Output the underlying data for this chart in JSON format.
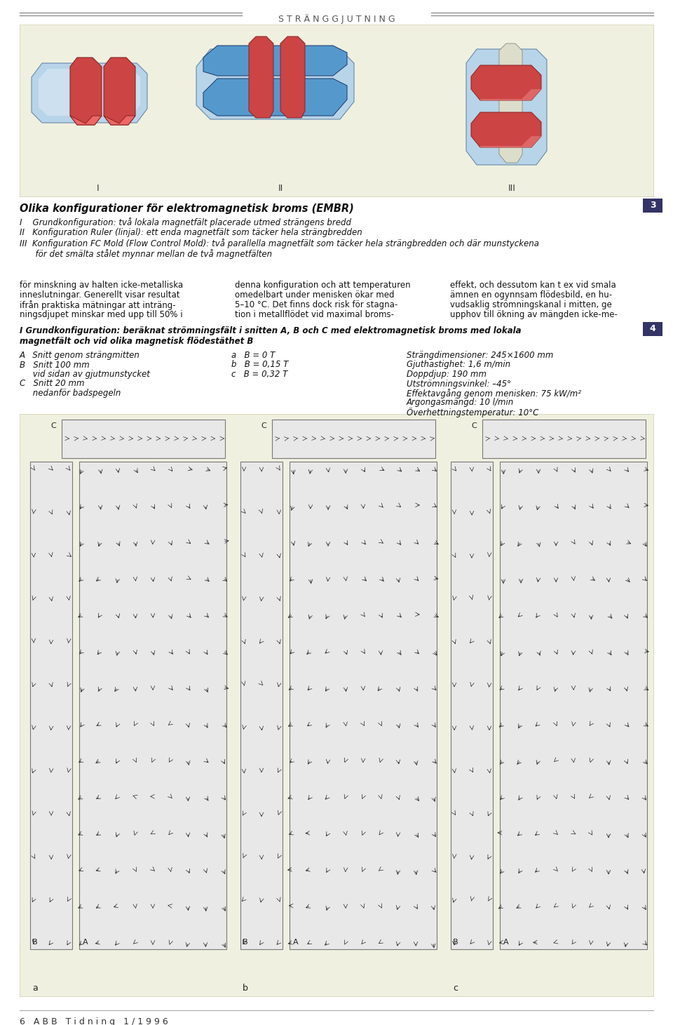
{
  "bg_color": "#f0f0e0",
  "white": "#ffffff",
  "header_text": "S T R Ä N G G J U T N I N G",
  "header_line_color": "#888888",
  "section3_number": "3",
  "section4_number": "4",
  "title3": "Olika konfigurationer för elektromagnetisk broms (EMBR)",
  "body3_lines": [
    "I    Grundkonfiguration: två lokala magnetfält placerade utmed strängens bredd",
    "II   Konfiguration Ruler (linjal): ett enda magnetfält som täcker hela strängbredden",
    "III  Konfiguration FC Mold (Flow Control Mold): två parallella magnetfält som täcker hela strängbredden och där munstyckena",
    "      för det smälta stålet mynnar mellan de två magnetfälten"
  ],
  "col1_lines": [
    "för minskning av halten icke-metalliska",
    "inneslutningar. Generellt visar resultat",
    "ifrån praktiska mätningar att inträng-",
    "ningsdjupet minskar med upp till 50% i"
  ],
  "col2_lines": [
    "denna konfiguration och att temperaturen",
    "omedelbart under menisken ökar med",
    "5–10 °C. Det finns dock risk för stagna-",
    "tion i metallflödet vid maximal broms-"
  ],
  "col3_lines": [
    "effekt, och dessutom kan t ex vid smala",
    "ämnen en ogynnsam flödesbild, en hu-",
    "vudsaklig strömningskanal i mitten, ge",
    "upphov till ökning av mängden icke-me-"
  ],
  "title4a": "I Grundkonfiguration: beräknat strömningsfält i snitten A, B och C med elektromagnetisk broms med lokala",
  "title4b": "magnetfält och vid olika magnetisk flödestäthet B",
  "left_col": [
    "A   Snitt genom strängmitten",
    "B   Snitt 100 mm",
    "     vid sidan av gjutmunstycket",
    "C   Snitt 20 mm",
    "     nedanför badspegeln"
  ],
  "mid_col": [
    "a   B = 0 T",
    "b   B = 0,15 T",
    "c   B = 0,32 T"
  ],
  "right_col": [
    "Strängdimensioner: 245×1600 mm",
    "Gjuthastighet: 1,6 m/min",
    "Doppdjup: 190 mm",
    "Utströmningsvinkel: –45°",
    "Effektavgång genom menisken: 75 kW/m²",
    "Argongasmängd: 10 l/min",
    "Överhettningstemperatur: 10°C"
  ],
  "footer_text": "6   A B B   T i d n i n g   1 / 1 9 9 6",
  "roman_labels": [
    "I",
    "II",
    "III"
  ],
  "panel_letters": [
    "a",
    "b",
    "c"
  ]
}
